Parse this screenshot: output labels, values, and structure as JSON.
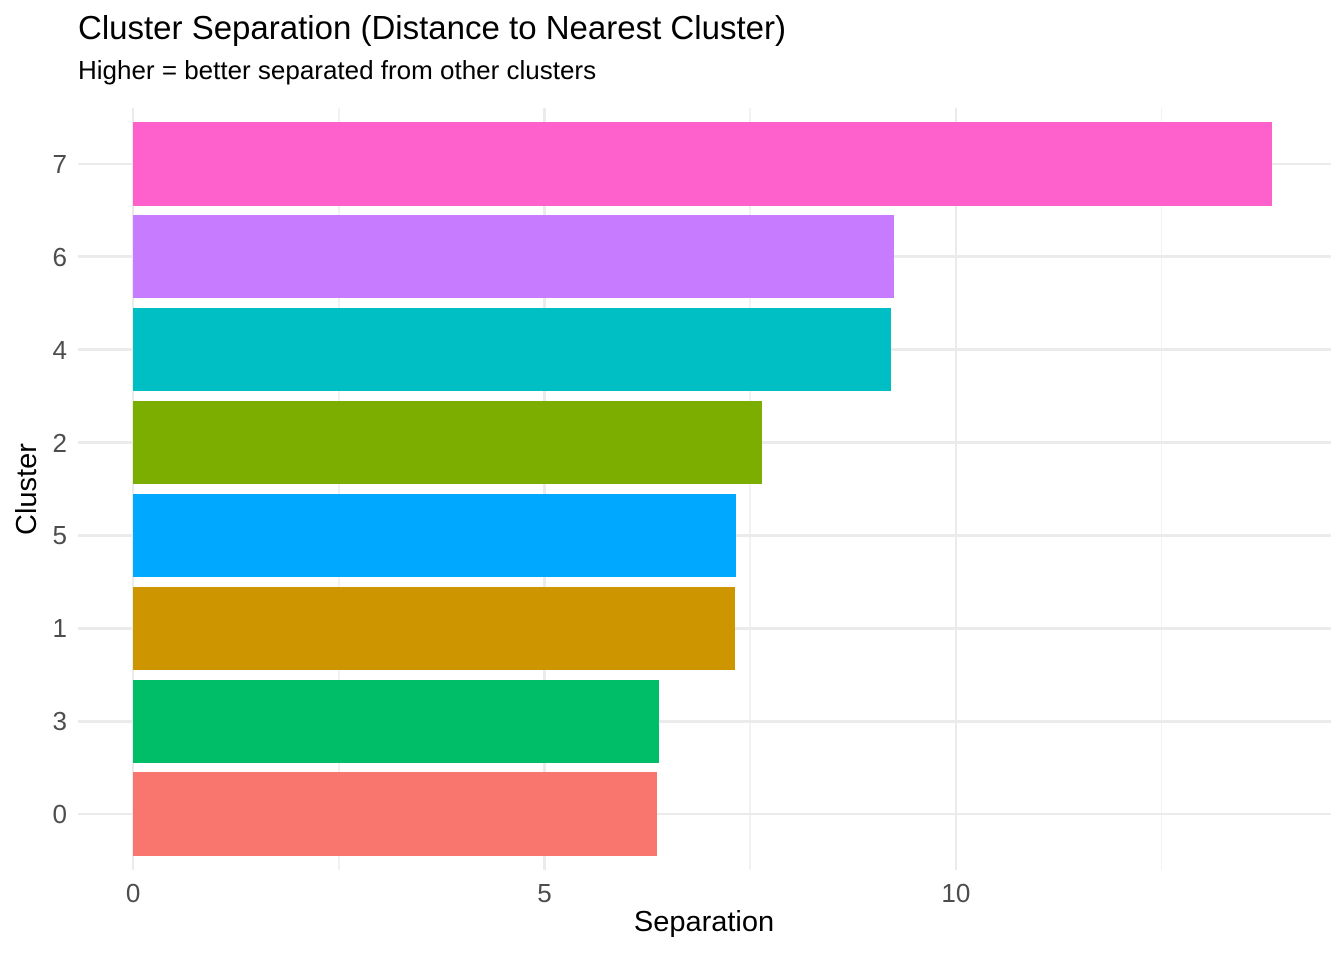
{
  "chart_data": {
    "type": "bar",
    "orientation": "horizontal",
    "title": "Cluster Separation (Distance to Nearest Cluster)",
    "subtitle": "Higher = better separated from other clusters",
    "xlabel": "Separation",
    "ylabel": "Cluster",
    "categories": [
      "7",
      "6",
      "4",
      "2",
      "5",
      "1",
      "3",
      "0"
    ],
    "values": [
      13.84,
      9.25,
      9.21,
      7.64,
      7.33,
      7.32,
      6.39,
      6.37
    ],
    "bar_colors": [
      "#FF61CC",
      "#C77CFF",
      "#00BFC4",
      "#7CAE00",
      "#00A9FF",
      "#CD9600",
      "#00BE67",
      "#F8766D"
    ],
    "xticks": [
      0,
      5,
      10
    ],
    "xtick_labels": [
      "0",
      "5",
      "10"
    ],
    "minor_xticks": [
      2.5,
      7.5,
      12.5
    ],
    "xlim": [
      -0.67,
      14.56
    ],
    "bar_rel_width": 0.9,
    "axis_pad_units": 0.6,
    "grid": true,
    "legend": "none",
    "colors": {
      "background": "#FFFFFF",
      "grid_major": "#EBEBEB",
      "grid_minor": "#F2F2F2",
      "tick_label": "#4D4D4D",
      "text": "#000000"
    }
  }
}
